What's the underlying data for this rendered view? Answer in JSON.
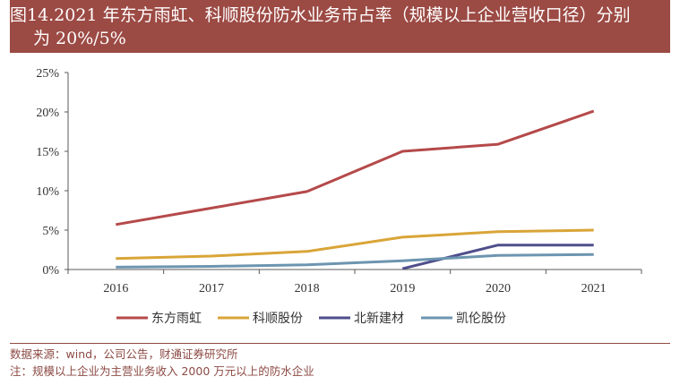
{
  "title": {
    "line1": "图14.2021 年东方雨虹、科顺股份防水业务市占率（规模以上企业营收口径）分别",
    "line2": "为 20%/5%"
  },
  "colors": {
    "title_bg": "#9c4a44",
    "footer_text": "#8c4a44"
  },
  "chart_data": {
    "type": "line",
    "title": "2021 年东方雨虹、科顺股份防水业务市占率（规模以上企业营收口径）分别为 20%/5%",
    "xlabel": "",
    "ylabel": "",
    "categories": [
      "2016",
      "2017",
      "2018",
      "2019",
      "2020",
      "2021"
    ],
    "ylim": [
      0,
      25
    ],
    "yticks": [
      0,
      5,
      10,
      15,
      20,
      25
    ],
    "ytick_labels": [
      "0%",
      "5%",
      "10%",
      "15%",
      "20%",
      "25%"
    ],
    "grid": false,
    "legend_position": "bottom",
    "series": [
      {
        "name": "东方雨虹",
        "color": "#b5494a",
        "values": [
          5.7,
          7.8,
          9.9,
          15.0,
          15.9,
          20.1
        ]
      },
      {
        "name": "科顺股份",
        "color": "#d9a538",
        "values": [
          1.4,
          1.7,
          2.3,
          4.1,
          4.8,
          5.0
        ]
      },
      {
        "name": "北新建材",
        "color": "#4f4e8c",
        "values": [
          null,
          null,
          null,
          0.1,
          3.1,
          3.1
        ]
      },
      {
        "name": "凯伦股份",
        "color": "#6c95b0",
        "values": [
          0.3,
          0.4,
          0.6,
          1.1,
          1.8,
          1.9
        ]
      }
    ]
  },
  "footer": {
    "source": "数据来源：wind，公司公告，财通证券研究所",
    "note": "注：规模以上企业为主营业务收入 2000 万元以上的防水企业"
  }
}
